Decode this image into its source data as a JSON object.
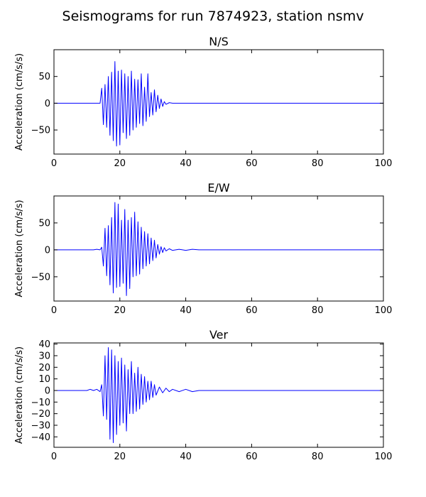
{
  "figure": {
    "suptitle": "Seismograms for run 7874923, station nsmv"
  },
  "chart_data": [
    {
      "type": "line",
      "title": "N/S",
      "xlabel": "",
      "ylabel": "Acceleration (cm/s/s)",
      "xlim": [
        0,
        100
      ],
      "ylim": [
        -95,
        100
      ],
      "xticks": [
        0,
        20,
        40,
        60,
        80,
        100
      ],
      "xtick_labels": [
        "0",
        "20",
        "40",
        "60",
        "80",
        "100"
      ],
      "yticks": [
        -50,
        0,
        50
      ],
      "ytick_labels": [
        "−50",
        "0",
        "50"
      ],
      "grid": false,
      "series": [
        {
          "color": "#0000ff",
          "x": [
            0,
            10,
            14,
            14.5,
            15,
            15.5,
            16,
            16.5,
            17,
            17.5,
            18,
            18.5,
            19,
            19.5,
            20,
            20.5,
            21,
            21.5,
            22,
            22.5,
            23,
            23.5,
            24,
            24.5,
            25,
            25.5,
            26,
            26.5,
            27,
            27.5,
            28,
            28.5,
            29,
            29.5,
            30,
            30.5,
            31,
            31.5,
            32,
            32.5,
            33,
            33.5,
            34,
            35,
            36,
            40,
            50,
            100
          ],
          "y": [
            0,
            0,
            0,
            28,
            -40,
            35,
            -45,
            50,
            -60,
            58,
            -70,
            78,
            -80,
            60,
            -78,
            62,
            -55,
            55,
            -66,
            50,
            -60,
            60,
            -50,
            45,
            -45,
            44,
            -38,
            55,
            -42,
            30,
            -34,
            55,
            -25,
            20,
            -22,
            25,
            -16,
            15,
            -10,
            8,
            -6,
            3,
            -2,
            1,
            0,
            0,
            0,
            0
          ]
        }
      ]
    },
    {
      "type": "line",
      "title": "E/W",
      "xlabel": "",
      "ylabel": "Acceleration (cm/s/s)",
      "xlim": [
        0,
        100
      ],
      "ylim": [
        -95,
        100
      ],
      "xticks": [
        0,
        20,
        40,
        60,
        80,
        100
      ],
      "xtick_labels": [
        "0",
        "20",
        "40",
        "60",
        "80",
        "100"
      ],
      "yticks": [
        -50,
        0,
        50
      ],
      "ytick_labels": [
        "−50",
        "0",
        "50"
      ],
      "grid": false,
      "series": [
        {
          "color": "#0000ff",
          "x": [
            0,
            12,
            13,
            14,
            14.5,
            15,
            15.5,
            16,
            16.5,
            17,
            17.5,
            18,
            18.5,
            19,
            19.5,
            20,
            20.5,
            21,
            21.5,
            22,
            22.5,
            23,
            23.5,
            24,
            24.5,
            25,
            25.5,
            26,
            26.5,
            27,
            27.5,
            28,
            28.5,
            29,
            29.5,
            30,
            30.5,
            31,
            31.5,
            32,
            32.5,
            33,
            33.5,
            34,
            35,
            36,
            38,
            40,
            42,
            44,
            50,
            100
          ],
          "y": [
            0,
            0,
            1,
            0,
            5,
            -30,
            40,
            -48,
            45,
            -65,
            60,
            -80,
            88,
            -70,
            85,
            -68,
            55,
            -62,
            75,
            -85,
            55,
            -72,
            60,
            -50,
            70,
            -48,
            52,
            -45,
            42,
            -35,
            34,
            -30,
            30,
            -26,
            22,
            -20,
            18,
            -15,
            10,
            -8,
            6,
            -5,
            4,
            -2,
            2,
            -1,
            1,
            -1,
            1,
            0,
            0,
            0
          ]
        }
      ]
    },
    {
      "type": "line",
      "title": "Ver",
      "xlabel": "",
      "ylabel": "Acceleration (cm/s/s)",
      "xlim": [
        0,
        100
      ],
      "ylim": [
        -49,
        41
      ],
      "xticks": [
        0,
        20,
        40,
        60,
        80,
        100
      ],
      "xtick_labels": [
        "0",
        "20",
        "40",
        "60",
        "80",
        "100"
      ],
      "yticks": [
        -40,
        -30,
        -20,
        -10,
        0,
        10,
        20,
        30,
        40
      ],
      "ytick_labels": [
        "−40",
        "−30",
        "−20",
        "−10",
        "0",
        "10",
        "20",
        "30",
        "40"
      ],
      "grid": false,
      "series": [
        {
          "color": "#0000ff",
          "x": [
            0,
            10,
            11,
            12,
            13,
            14,
            14.5,
            15,
            15.5,
            16,
            16.5,
            17,
            17.5,
            18,
            18.5,
            19,
            19.5,
            20,
            20.5,
            21,
            21.5,
            22,
            22.5,
            23,
            23.5,
            24,
            24.5,
            25,
            25.5,
            26,
            26.5,
            27,
            27.5,
            28,
            28.5,
            29,
            29.5,
            30,
            30.5,
            31,
            32,
            33,
            34,
            35,
            36,
            38,
            40,
            42,
            44,
            50,
            100
          ],
          "y": [
            0,
            0,
            1,
            0,
            1,
            -1,
            5,
            -22,
            30,
            -25,
            37,
            -42,
            35,
            -45,
            30,
            -38,
            25,
            -30,
            28,
            -28,
            22,
            -35,
            18,
            -20,
            25,
            -20,
            15,
            -18,
            20,
            -16,
            14,
            -12,
            12,
            -10,
            8,
            -8,
            8,
            -6,
            5,
            -4,
            3,
            -2,
            2,
            -1,
            1,
            -1,
            1,
            -1,
            0,
            0,
            0
          ]
        }
      ]
    }
  ]
}
